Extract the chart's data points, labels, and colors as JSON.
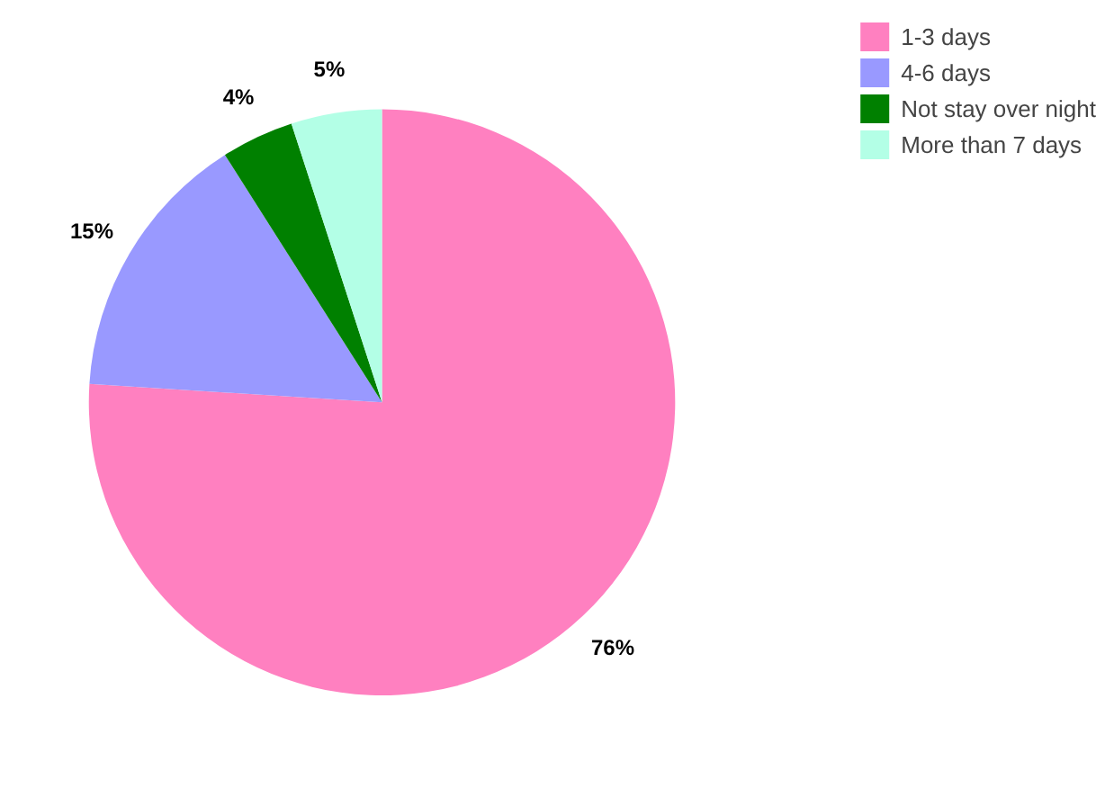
{
  "chart_data": {
    "type": "pie",
    "categories": [
      "1-3 days",
      "4-6 days",
      "Not stay over night",
      "More than 7 days"
    ],
    "values": [
      76,
      15,
      4,
      5
    ],
    "colors": [
      "#ff80c0",
      "#9999ff",
      "#008000",
      "#b3ffe6"
    ],
    "value_labels": [
      "76%",
      "15%",
      "4%",
      "5%"
    ],
    "legend": "top right"
  }
}
